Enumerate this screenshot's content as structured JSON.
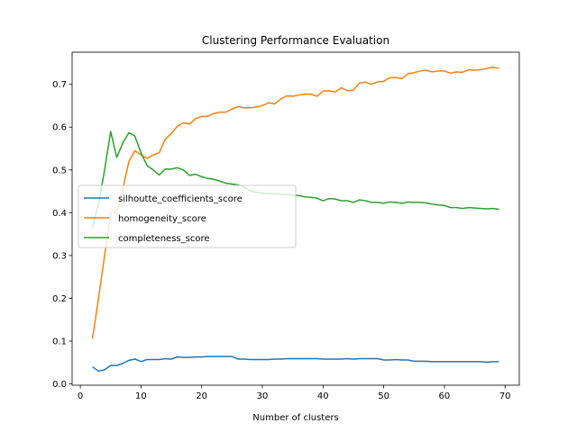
{
  "chart_data": {
    "type": "line",
    "title": "Clustering Performance Evaluation",
    "xlabel": "Number of clusters",
    "ylabel": "",
    "xlim": [
      -1.35,
      72.35
    ],
    "ylim": [
      -0.003,
      0.775
    ],
    "xticks": [
      0,
      10,
      20,
      30,
      40,
      50,
      60,
      70
    ],
    "yticks": [
      0.0,
      0.1,
      0.2,
      0.3,
      0.4,
      0.5,
      0.6,
      0.7
    ],
    "grid": false,
    "legend_location": "center-left",
    "x": [
      2,
      3,
      4,
      5,
      6,
      7,
      8,
      9,
      10,
      11,
      12,
      13,
      14,
      15,
      16,
      17,
      18,
      19,
      20,
      21,
      22,
      23,
      24,
      25,
      26,
      27,
      28,
      29,
      30,
      31,
      32,
      33,
      34,
      35,
      36,
      37,
      38,
      39,
      40,
      41,
      42,
      43,
      44,
      45,
      46,
      47,
      48,
      49,
      50,
      51,
      52,
      53,
      54,
      55,
      56,
      57,
      58,
      59,
      60,
      61,
      62,
      63,
      64,
      65,
      66,
      67,
      68,
      69
    ],
    "series": [
      {
        "name": "silhoutte_coefficients_score",
        "color": "#1f77b4",
        "values": [
          0.04,
          0.03,
          0.033,
          0.043,
          0.043,
          0.048,
          0.055,
          0.058,
          0.052,
          0.057,
          0.057,
          0.057,
          0.059,
          0.058,
          0.063,
          0.062,
          0.062,
          0.063,
          0.063,
          0.064,
          0.064,
          0.064,
          0.064,
          0.064,
          0.058,
          0.058,
          0.057,
          0.057,
          0.057,
          0.057,
          0.058,
          0.058,
          0.059,
          0.059,
          0.059,
          0.059,
          0.059,
          0.059,
          0.058,
          0.058,
          0.058,
          0.058,
          0.059,
          0.058,
          0.059,
          0.059,
          0.059,
          0.059,
          0.056,
          0.056,
          0.057,
          0.056,
          0.056,
          0.053,
          0.053,
          0.053,
          0.052,
          0.052,
          0.052,
          0.052,
          0.052,
          0.052,
          0.052,
          0.052,
          0.052,
          0.051,
          0.052,
          0.052
        ]
      },
      {
        "name": "homogeneity_score",
        "color": "#ff7f0e",
        "values": [
          0.106,
          0.2,
          0.3,
          0.4,
          0.401,
          0.455,
          0.52,
          0.545,
          0.535,
          0.527,
          0.535,
          0.54,
          0.572,
          0.585,
          0.602,
          0.61,
          0.607,
          0.62,
          0.625,
          0.625,
          0.632,
          0.635,
          0.635,
          0.642,
          0.648,
          0.645,
          0.645,
          0.647,
          0.65,
          0.657,
          0.654,
          0.665,
          0.673,
          0.672,
          0.675,
          0.677,
          0.677,
          0.672,
          0.684,
          0.685,
          0.682,
          0.692,
          0.685,
          0.686,
          0.703,
          0.705,
          0.7,
          0.706,
          0.707,
          0.715,
          0.716,
          0.713,
          0.725,
          0.727,
          0.731,
          0.733,
          0.729,
          0.731,
          0.731,
          0.726,
          0.729,
          0.728,
          0.734,
          0.733,
          0.734,
          0.737,
          0.74,
          0.737
        ]
      },
      {
        "name": "completeness_score",
        "color": "#2ca02c",
        "values": [
          0.365,
          0.42,
          0.5,
          0.59,
          0.529,
          0.563,
          0.587,
          0.579,
          0.54,
          0.51,
          0.5,
          0.488,
          0.502,
          0.502,
          0.505,
          0.5,
          0.487,
          0.49,
          0.484,
          0.48,
          0.478,
          0.474,
          0.469,
          0.467,
          0.465,
          0.46,
          0.451,
          0.448,
          0.446,
          0.444,
          0.444,
          0.443,
          0.443,
          0.441,
          0.44,
          0.437,
          0.436,
          0.434,
          0.428,
          0.433,
          0.432,
          0.428,
          0.428,
          0.424,
          0.43,
          0.428,
          0.424,
          0.424,
          0.422,
          0.425,
          0.424,
          0.422,
          0.425,
          0.424,
          0.424,
          0.423,
          0.42,
          0.418,
          0.417,
          0.412,
          0.412,
          0.41,
          0.412,
          0.411,
          0.41,
          0.409,
          0.41,
          0.408
        ]
      }
    ]
  }
}
